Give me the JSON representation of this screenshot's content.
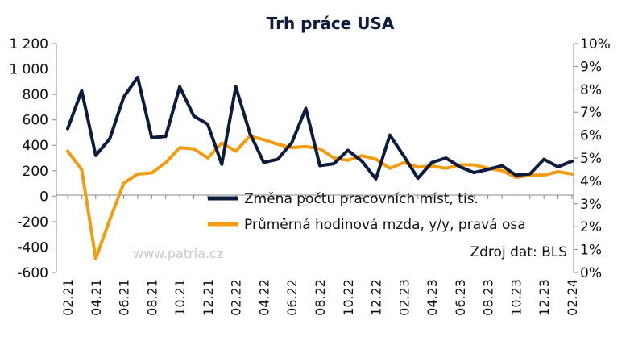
{
  "chart_data": {
    "type": "line",
    "title": "Trh práce USA",
    "x": [
      "02.21",
      "03.21",
      "04.21",
      "05.21",
      "06.21",
      "07.21",
      "08.21",
      "09.21",
      "10.21",
      "11.21",
      "12.21",
      "01.22",
      "02.22",
      "03.22",
      "04.22",
      "05.22",
      "06.22",
      "07.22",
      "08.22",
      "09.22",
      "10.22",
      "11.22",
      "12.22",
      "01.23",
      "02.23",
      "03.23",
      "04.23",
      "05.23",
      "06.23",
      "07.23",
      "08.23",
      "09.23",
      "10.23",
      "11.23",
      "12.23",
      "01.24",
      "02.24"
    ],
    "x_tick_labels": [
      "02.21",
      "04.21",
      "06.21",
      "08.21",
      "10.21",
      "12.21",
      "02.22",
      "04.22",
      "06.22",
      "08.22",
      "10.22",
      "12.22",
      "02.23",
      "04.23",
      "06.23",
      "08.23",
      "10.23",
      "12.23",
      "02.24"
    ],
    "series": [
      {
        "name": "Změna počtu pracovních míst, tis.",
        "axis": "left",
        "color": "#0d1b3e",
        "values": [
          530,
          830,
          320,
          450,
          780,
          935,
          460,
          470,
          860,
          630,
          565,
          250,
          860,
          495,
          265,
          290,
          420,
          690,
          240,
          255,
          360,
          275,
          135,
          480,
          315,
          140,
          265,
          300,
          230,
          185,
          210,
          240,
          165,
          175,
          290,
          230,
          275
        ]
      },
      {
        "name": "Průměrná hodinová mzda, y/y, pravá osa",
        "axis": "right",
        "color": "#f39c12",
        "values": [
          5.3,
          4.5,
          0.6,
          2.3,
          3.9,
          4.3,
          4.35,
          4.8,
          5.45,
          5.4,
          5.0,
          5.65,
          5.3,
          5.95,
          5.8,
          5.6,
          5.45,
          5.5,
          5.4,
          5.0,
          4.9,
          5.1,
          4.95,
          4.55,
          4.8,
          4.6,
          4.65,
          4.55,
          4.7,
          4.7,
          4.55,
          4.45,
          4.15,
          4.25,
          4.25,
          4.4,
          4.3
        ]
      }
    ],
    "y_left": {
      "ylim": [
        -600,
        1200
      ],
      "ticks": [
        -600,
        -400,
        -200,
        0,
        200,
        400,
        600,
        800,
        1000,
        1200
      ],
      "tick_labels": [
        "-600",
        "-400",
        "-200",
        "0",
        "200",
        "400",
        "600",
        "800",
        "1 000",
        "1 200"
      ]
    },
    "y_right": {
      "ylim": [
        0,
        10
      ],
      "ticks": [
        0,
        1,
        2,
        3,
        4,
        5,
        6,
        7,
        8,
        9,
        10
      ],
      "tick_labels": [
        "0%",
        "1%",
        "2%",
        "3%",
        "4%",
        "5%",
        "6%",
        "7%",
        "8%",
        "9%",
        "10%"
      ]
    },
    "grid": false,
    "legend_position": "center-right",
    "watermark": "www.patria.cz",
    "source": "Zdroj dat: BLS"
  }
}
